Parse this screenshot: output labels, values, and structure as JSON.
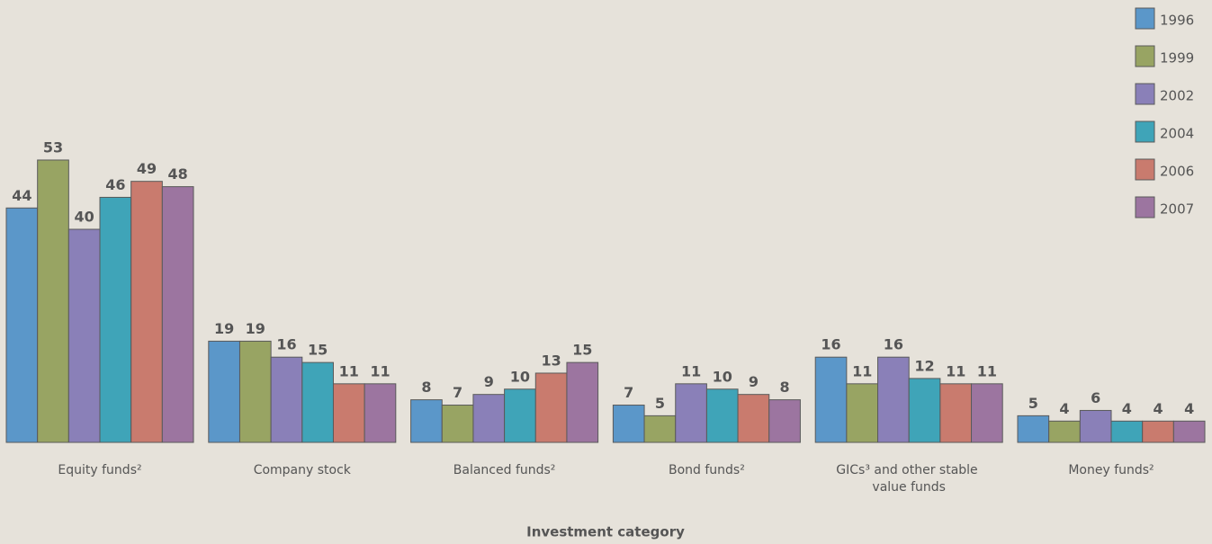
{
  "chart_data": {
    "type": "bar",
    "x_label": "Investment category",
    "categories": [
      "Equity funds²",
      "Company stock",
      "Balanced funds²",
      "Bond funds²",
      "GICs³ and other stable value funds",
      "Money funds²"
    ],
    "series": [
      {
        "name": "1996",
        "color": "#5b97c9",
        "values": [
          44,
          19,
          8,
          7,
          16,
          5
        ]
      },
      {
        "name": "1999",
        "color": "#98a463",
        "values": [
          53,
          19,
          7,
          5,
          11,
          4
        ]
      },
      {
        "name": "2002",
        "color": "#8a80b8",
        "values": [
          40,
          16,
          9,
          11,
          16,
          6
        ]
      },
      {
        "name": "2004",
        "color": "#3fa4b8",
        "values": [
          46,
          15,
          10,
          10,
          12,
          4
        ]
      },
      {
        "name": "2006",
        "color": "#c97b6e",
        "values": [
          49,
          11,
          13,
          9,
          11,
          4
        ]
      },
      {
        "name": "2007",
        "color": "#9c75a0",
        "values": [
          48,
          11,
          15,
          8,
          11,
          4
        ]
      }
    ],
    "legend": "top-right",
    "data_labels": true
  }
}
